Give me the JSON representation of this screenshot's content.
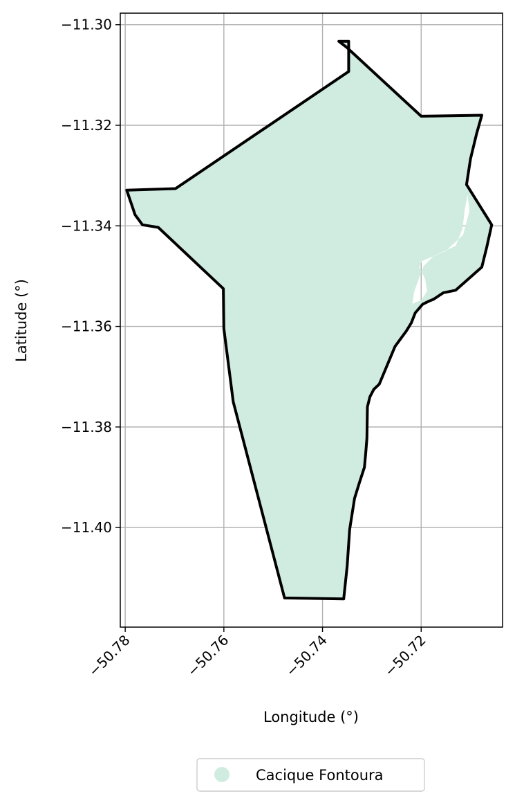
{
  "chart_data": {
    "type": "map",
    "xlabel": "Longitude (°)",
    "ylabel": "Latitude (°)",
    "xlim": [
      -50.781,
      -50.7035
    ],
    "ylim": [
      -11.4198,
      -11.2977
    ],
    "x_ticks": [
      -50.78,
      -50.76,
      -50.74,
      -50.72
    ],
    "x_tick_labels": [
      "−50.78",
      "−50.76",
      "−50.74",
      "−50.72"
    ],
    "y_ticks": [
      -11.3,
      -11.32,
      -11.34,
      -11.36,
      -11.38,
      -11.4
    ],
    "y_tick_labels": [
      "−11.30",
      "−11.32",
      "−11.34",
      "−11.36",
      "−11.38",
      "−11.40"
    ],
    "grid": true,
    "legend": {
      "placement": "bottom-center",
      "entries": [
        {
          "label": "Cacique Fontoura",
          "color": "#d0ece0"
        }
      ]
    },
    "region": {
      "name": "Cacique Fontoura",
      "fill_color": "#d0ece0",
      "edge_color": "#000000",
      "outline": [
        [
          -50.7367,
          -11.3033
        ],
        [
          -50.7351,
          -11.3045
        ],
        [
          -50.72,
          -11.3182
        ],
        [
          -50.7077,
          -11.318
        ],
        [
          -50.7088,
          -11.3218
        ],
        [
          -50.71,
          -11.3267
        ],
        [
          -50.7108,
          -11.3318
        ],
        [
          -50.7057,
          -11.3398
        ],
        [
          -50.7067,
          -11.3442
        ],
        [
          -50.7077,
          -11.3482
        ],
        [
          -50.713,
          -11.3528
        ],
        [
          -50.7155,
          -11.3533
        ],
        [
          -50.7175,
          -11.3546
        ],
        [
          -50.7185,
          -11.355
        ],
        [
          -50.7197,
          -11.3556
        ],
        [
          -50.7212,
          -11.3573
        ],
        [
          -50.722,
          -11.3593
        ],
        [
          -50.723,
          -11.3609
        ],
        [
          -50.7253,
          -11.364
        ],
        [
          -50.7285,
          -11.3715
        ],
        [
          -50.7296,
          -11.3725
        ],
        [
          -50.7304,
          -11.374
        ],
        [
          -50.7309,
          -11.376
        ],
        [
          -50.731,
          -11.3822
        ],
        [
          -50.7312,
          -11.3848
        ],
        [
          -50.7315,
          -11.388
        ],
        [
          -50.7325,
          -11.391
        ],
        [
          -50.7335,
          -11.3942
        ],
        [
          -50.7345,
          -11.4004
        ],
        [
          -50.735,
          -11.4077
        ],
        [
          -50.7357,
          -11.4142
        ],
        [
          -50.7477,
          -11.414
        ],
        [
          -50.7581,
          -11.375
        ],
        [
          -50.76,
          -11.3604
        ],
        [
          -50.7601,
          -11.3525
        ],
        [
          -50.7733,
          -11.3403
        ],
        [
          -50.7765,
          -11.3398
        ],
        [
          -50.778,
          -11.3378
        ],
        [
          -50.7797,
          -11.3329
        ],
        [
          -50.7698,
          -11.3326
        ],
        [
          -50.7347,
          -11.3093
        ],
        [
          -50.7347,
          -11.3033
        ]
      ],
      "hole": [
        [
          -50.7106,
          -11.3338
        ],
        [
          -50.7112,
          -11.337
        ],
        [
          -50.7116,
          -11.3405
        ],
        [
          -50.713,
          -11.344
        ],
        [
          -50.7175,
          -11.346
        ],
        [
          -50.7195,
          -11.348
        ],
        [
          -50.7214,
          -11.353
        ],
        [
          -50.7218,
          -11.3555
        ],
        [
          -50.72,
          -11.3548
        ],
        [
          -50.7188,
          -11.353
        ],
        [
          -50.7192,
          -11.3506
        ],
        [
          -50.7204,
          -11.3482
        ],
        [
          -50.7198,
          -11.347
        ],
        [
          -50.715,
          -11.345
        ],
        [
          -50.7115,
          -11.3418
        ],
        [
          -50.7102,
          -11.337
        ]
      ]
    }
  }
}
